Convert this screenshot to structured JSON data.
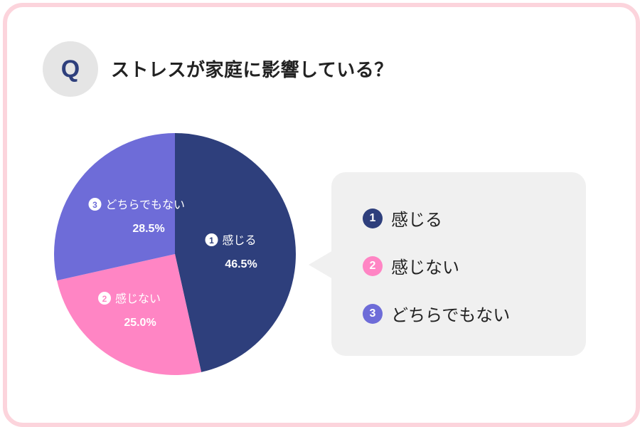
{
  "question": {
    "badge": "Q",
    "text": "ストレスが家庭に影響している？"
  },
  "chart_data": {
    "type": "pie",
    "title": "ストレスが家庭に影響している？",
    "slices": [
      {
        "num": "1",
        "label": "感じる",
        "value": 46.5,
        "value_text": "46.5%",
        "color": "#2e3f7c"
      },
      {
        "num": "2",
        "label": "感じない",
        "value": 25.0,
        "value_text": "25.0%",
        "color": "#ff85c4"
      },
      {
        "num": "3",
        "label": "どちらでもない",
        "value": 28.5,
        "value_text": "28.5%",
        "color": "#6e6cd8"
      }
    ],
    "legend_position": "right"
  },
  "colors": {
    "frame": "#fcd4dc",
    "badge_bg": "#e5e5e5",
    "legend_bg": "#f0f0f0"
  }
}
